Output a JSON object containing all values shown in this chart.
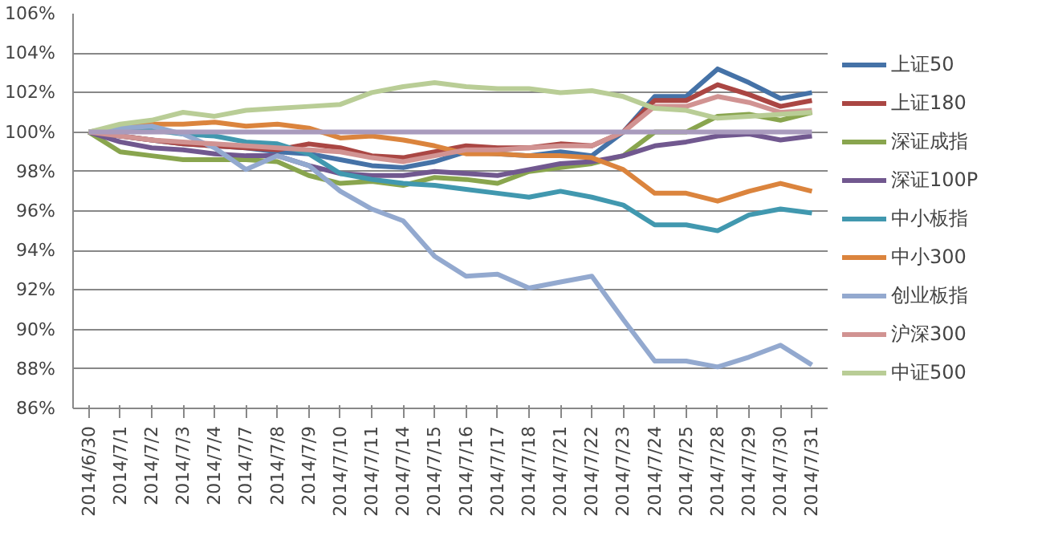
{
  "chart_data": {
    "type": "line",
    "categories": [
      "2014/6/30",
      "2014/7/1",
      "2014/7/2",
      "2014/7/3",
      "2014/7/4",
      "2014/7/7",
      "2014/7/8",
      "2014/7/9",
      "2014/7/10",
      "2014/7/11",
      "2014/7/14",
      "2014/7/15",
      "2014/7/16",
      "2014/7/17",
      "2014/7/18",
      "2014/7/21",
      "2014/7/22",
      "2014/7/23",
      "2014/7/24",
      "2014/7/25",
      "2014/7/28",
      "2014/7/29",
      "2014/7/30",
      "2014/7/31"
    ],
    "series": [
      {
        "name": "上证50",
        "color": "#4572a7",
        "values": [
          100,
          99.8,
          99.6,
          99.4,
          99.3,
          99.2,
          99.0,
          98.9,
          98.6,
          98.3,
          98.2,
          98.5,
          99.0,
          98.9,
          98.8,
          99.0,
          98.8,
          100.0,
          101.8,
          101.8,
          103.2,
          102.5,
          101.7,
          102.0
        ]
      },
      {
        "name": "上证180",
        "color": "#aa4643",
        "values": [
          100,
          99.8,
          99.6,
          99.4,
          99.3,
          99.2,
          99.1,
          99.4,
          99.2,
          98.8,
          98.7,
          99.0,
          99.3,
          99.2,
          99.2,
          99.4,
          99.3,
          100.0,
          101.6,
          101.6,
          102.4,
          101.9,
          101.3,
          101.6
        ]
      },
      {
        "name": "深证成指",
        "color": "#89a54e",
        "values": [
          100,
          99.0,
          98.8,
          98.6,
          98.6,
          98.6,
          98.5,
          97.8,
          97.4,
          97.5,
          97.3,
          97.7,
          97.6,
          97.4,
          98.0,
          98.2,
          98.4,
          98.8,
          100.0,
          100.0,
          100.8,
          100.9,
          100.6,
          101.0
        ]
      },
      {
        "name": "深证100P",
        "color": "#71588f",
        "values": [
          100,
          99.5,
          99.2,
          99.1,
          98.9,
          98.8,
          98.8,
          98.3,
          97.9,
          97.8,
          97.8,
          98.0,
          97.9,
          97.8,
          98.1,
          98.4,
          98.5,
          98.8,
          99.3,
          99.5,
          99.8,
          99.9,
          99.6,
          99.8
        ]
      },
      {
        "name": "中小板指",
        "color": "#4198af",
        "values": [
          100,
          100.1,
          100.1,
          99.9,
          99.8,
          99.5,
          99.4,
          98.9,
          97.9,
          97.6,
          97.4,
          97.3,
          97.1,
          96.9,
          96.7,
          97.0,
          96.7,
          96.3,
          95.3,
          95.3,
          95.0,
          95.8,
          96.1,
          95.9
        ]
      },
      {
        "name": "中小300",
        "color": "#db843d",
        "values": [
          100,
          100.3,
          100.4,
          100.4,
          100.5,
          100.3,
          100.4,
          100.2,
          99.7,
          99.8,
          99.6,
          99.3,
          98.9,
          98.9,
          98.8,
          98.8,
          98.7,
          98.1,
          96.9,
          96.9,
          96.5,
          97.0,
          97.4,
          97.0
        ]
      },
      {
        "name": "创业板指",
        "color": "#93a9cf",
        "values": [
          100,
          100.2,
          100.3,
          99.9,
          99.2,
          98.1,
          98.8,
          98.3,
          97.0,
          96.1,
          95.5,
          93.7,
          92.7,
          92.8,
          92.1,
          92.4,
          92.7,
          90.5,
          88.4,
          88.4,
          88.1,
          88.6,
          89.2,
          88.2
        ]
      },
      {
        "name": "沪深300",
        "color": "#d19392",
        "values": [
          100,
          99.8,
          99.6,
          99.5,
          99.4,
          99.3,
          99.2,
          99.1,
          99.0,
          98.7,
          98.5,
          98.8,
          99.1,
          99.1,
          99.2,
          99.3,
          99.3,
          100.0,
          101.3,
          101.3,
          101.8,
          101.5,
          101.0,
          101.1
        ]
      },
      {
        "name": "中证500",
        "color": "#b9cd96",
        "values": [
          100,
          100.4,
          100.6,
          101.0,
          100.8,
          101.1,
          101.2,
          101.3,
          101.4,
          102.0,
          102.3,
          102.5,
          102.3,
          102.2,
          102.2,
          102.0,
          102.1,
          101.8,
          101.2,
          101.1,
          100.7,
          100.8,
          100.9,
          101.0
        ]
      },
      {
        "color": "#a99bbd",
        "values": [
          100,
          100,
          100,
          100,
          100,
          100,
          100,
          100,
          100,
          100,
          100,
          100,
          100,
          100,
          100,
          100,
          100,
          100,
          100,
          100,
          100,
          100,
          100,
          100
        ]
      }
    ],
    "ylim": [
      86,
      106
    ],
    "yticks": [
      {
        "value": 86,
        "label": "86%"
      },
      {
        "value": 88,
        "label": "88%"
      },
      {
        "value": 90,
        "label": "90%"
      },
      {
        "value": 92,
        "label": "92%"
      },
      {
        "value": 94,
        "label": "94%"
      },
      {
        "value": 96,
        "label": "96%"
      },
      {
        "value": 98,
        "label": "98%"
      },
      {
        "value": 100,
        "label": "100%"
      },
      {
        "value": 102,
        "label": "102%"
      },
      {
        "value": 104,
        "label": "104%"
      },
      {
        "value": 106,
        "label": "106%"
      }
    ],
    "grid": "y",
    "legend": "right",
    "marker": "none",
    "line_style": "solid"
  }
}
